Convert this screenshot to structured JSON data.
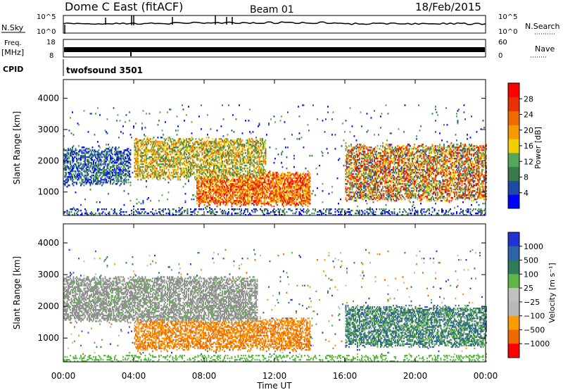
{
  "header": {
    "station": "Dome C East (fitACF)",
    "beam": "Beam 01",
    "date": "18/Feb/2015"
  },
  "top_panels": {
    "nsky_label": "N.Sky",
    "nsky_ticks": [
      "10^5",
      "10^0"
    ],
    "nsearch_label": "N.Search",
    "nsearch_ticks": [
      "10^5",
      "10^0"
    ],
    "freq_label_1": "Freq.",
    "freq_label_2": "[MHz]",
    "freq_ticks": [
      "18",
      "8"
    ],
    "nave_label": "Nave",
    "nave_ticks": [
      "60",
      "0"
    ],
    "cpid_label": "CPID",
    "cpid_value": "twofsound 3501"
  },
  "colors": {
    "power_scale": [
      "#0000ff",
      "#1f49a8",
      "#3a7a4a",
      "#55a85a",
      "#f0d000",
      "#f59a00",
      "#ef6a00",
      "#e83000",
      "#ff0000"
    ],
    "velocity_scale": [
      "#1f33d6",
      "#2e63a8",
      "#2e7a5a",
      "#5fb547",
      "#c0c0c0",
      "#b8b8b8",
      "#ff9a00",
      "#ee6a00",
      "#ff0000"
    ],
    "ground_scatter": "#909090"
  },
  "chart_data": [
    {
      "type": "heatmap",
      "name": "power",
      "ylabel": "Slant Range [km]",
      "yticks": [
        "1000",
        "2000",
        "3000",
        "4000"
      ],
      "ylim": [
        250,
        4600
      ],
      "xlim": [
        0,
        24
      ],
      "colorbar_label": "Power [dB]",
      "colorbar_ticks": [
        "4",
        "8",
        "12",
        "16",
        "20",
        "24",
        "28"
      ],
      "features": [
        {
          "t0": 0.0,
          "t1": 3.8,
          "r0": 1300,
          "r1": 2300,
          "level": "low"
        },
        {
          "t0": 4.0,
          "t1": 11.5,
          "r0": 1500,
          "r1": 2600,
          "level": "mid"
        },
        {
          "t0": 7.5,
          "t1": 14.0,
          "r0": 650,
          "r1": 1500,
          "level": "high"
        },
        {
          "t0": 16.0,
          "t1": 24.0,
          "r0": 800,
          "r1": 2400,
          "level": "mid-high"
        }
      ]
    },
    {
      "type": "heatmap",
      "name": "velocity",
      "ylabel": "Slant Range [km]",
      "yticks": [
        "1000",
        "2000",
        "3000",
        "4000"
      ],
      "ylim": [
        250,
        4600
      ],
      "xlim": [
        0,
        24
      ],
      "xlabel": "Time UT",
      "xticks": [
        "00:00",
        "04:00",
        "08:00",
        "12:00",
        "16:00",
        "20:00",
        "00:00"
      ],
      "colorbar_label": "Velocity [m s⁻¹]",
      "colorbar_ticks": [
        "1000",
        "500",
        "100",
        "25",
        "−25",
        "−100",
        "−500",
        "−1000"
      ],
      "features": [
        {
          "t0": 0.0,
          "t1": 11.0,
          "r0": 1600,
          "r1": 2800,
          "level": "ground"
        },
        {
          "t0": 4.0,
          "t1": 14.0,
          "r0": 700,
          "r1": 1500,
          "level": "negative"
        },
        {
          "t0": 16.0,
          "t1": 24.0,
          "r0": 800,
          "r1": 1900,
          "level": "positive"
        }
      ]
    }
  ]
}
